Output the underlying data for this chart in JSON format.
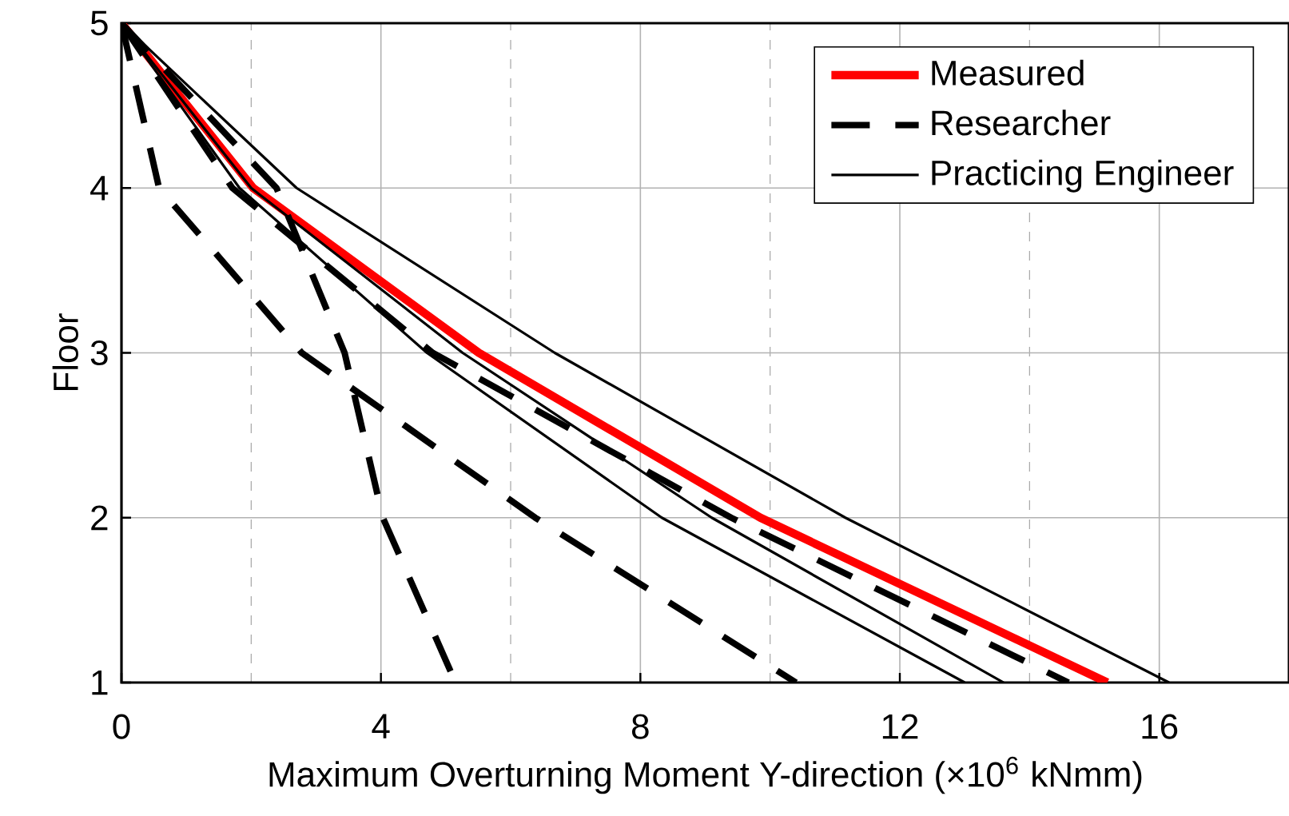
{
  "chart_data": {
    "type": "line",
    "xlabel": "Maximum Overturning Moment Y-direction (×10$^{6}$ kNmm)",
    "ylabel": "Floor",
    "xlim": [
      0,
      18
    ],
    "ylim": [
      1,
      5
    ],
    "xticks": [
      0,
      4,
      8,
      12,
      16
    ],
    "yticks": [
      1,
      2,
      3,
      4,
      5
    ],
    "grid": true,
    "legend": "top right",
    "marker": "none",
    "series": [
      {
        "name": "Measured",
        "color": "#ff0000",
        "line_style": "solid",
        "x": [
          0,
          2.03,
          5.51,
          9.85,
          15.2
        ],
        "values": [
          5,
          4,
          3,
          2,
          1
        ]
      },
      {
        "name": "Researcher",
        "color": "#000000",
        "line_style": "dashed",
        "x": [
          0,
          1.71,
          4.8,
          9.4,
          14.6
        ],
        "values": [
          5,
          4,
          3,
          2,
          1
        ]
      },
      {
        "name": "Practicing Engineer",
        "color": "#000000",
        "line_style": "solid",
        "x": [
          0,
          2.7,
          6.68,
          11.16,
          16.15
        ],
        "values": [
          5,
          4,
          3,
          2,
          1
        ]
      },
      {
        "color": "#000000",
        "line_style": "dashed",
        "x": [
          0,
          0.58,
          2.78,
          6.38,
          10.4
        ],
        "values": [
          5,
          4,
          3,
          2,
          1
        ]
      },
      {
        "color": "#000000",
        "line_style": "dashed",
        "x": [
          0,
          2.39,
          3.44,
          4.03,
          5.15
        ],
        "values": [
          5,
          4,
          3,
          2,
          1
        ]
      },
      {
        "color": "#000000",
        "line_style": "solid",
        "x": [
          0,
          1.82,
          4.71,
          8.33,
          13.0
        ],
        "values": [
          5,
          4,
          3,
          2,
          1
        ]
      },
      {
        "color": "#000000",
        "line_style": "solid",
        "x": [
          0,
          2.0,
          5.26,
          9.1,
          13.6
        ],
        "values": [
          5,
          4,
          3,
          2,
          1
        ]
      }
    ]
  }
}
